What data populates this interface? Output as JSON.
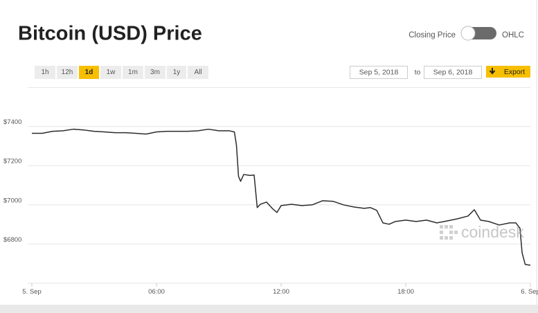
{
  "chart_data": {
    "type": "line",
    "title": "Bitcoin (USD) Price",
    "x": [
      0,
      0.5,
      1,
      1.5,
      2,
      2.5,
      3,
      3.5,
      4,
      4.5,
      5,
      5.5,
      6,
      6.5,
      7,
      7.5,
      8,
      8.5,
      9,
      9.5,
      9.75,
      9.85,
      9.95,
      10.05,
      10.2,
      10.5,
      10.7,
      10.85,
      11,
      11.3,
      11.6,
      11.8,
      12,
      12.5,
      13,
      13.5,
      14,
      14.5,
      15,
      15.5,
      16,
      16.3,
      16.6,
      16.9,
      17.2,
      17.5,
      18,
      18.5,
      19,
      19.5,
      20,
      20.5,
      21,
      21.3,
      21.6,
      22,
      22.5,
      23,
      23.3,
      23.5,
      23.6,
      23.75,
      24
    ],
    "values": [
      7365,
      7365,
      7375,
      7378,
      7386,
      7382,
      7375,
      7372,
      7368,
      7368,
      7365,
      7361,
      7372,
      7375,
      7375,
      7375,
      7378,
      7386,
      7378,
      7378,
      7372,
      7304,
      7145,
      7120,
      7155,
      7150,
      7152,
      6986,
      7003,
      7014,
      6979,
      6961,
      6996,
      7003,
      6996,
      7000,
      7021,
      7018,
      7000,
      6989,
      6982,
      6986,
      6972,
      6908,
      6901,
      6915,
      6922,
      6915,
      6922,
      6908,
      6918,
      6929,
      6943,
      6975,
      6922,
      6915,
      6897,
      6908,
      6908,
      6880,
      6756,
      6696,
      6692
    ],
    "color": "#2b2b2b",
    "xlim": [
      0,
      24
    ],
    "xticks": [
      {
        "value": 0,
        "label": "5. Sep"
      },
      {
        "value": 6,
        "label": "06:00"
      },
      {
        "value": 12,
        "label": "12:00"
      },
      {
        "value": 18,
        "label": "18:00"
      },
      {
        "value": 24,
        "label": "6. Sep"
      }
    ],
    "ylim": [
      6600,
      7600
    ],
    "yticks": [
      {
        "value": 6800,
        "label": "$6800"
      },
      {
        "value": 7000,
        "label": "$7000"
      },
      {
        "value": 7200,
        "label": "$7200"
      },
      {
        "value": 7400,
        "label": "$7400"
      }
    ],
    "grid": true
  },
  "controls": {
    "range_buttons": [
      "1h",
      "12h",
      "1d",
      "1w",
      "1m",
      "3m",
      "1y",
      "All"
    ],
    "active_range": "1d",
    "toggle_left": "Closing Price",
    "toggle_right": "OHLC",
    "date_from": "Sep 5, 2018",
    "date_separator": "to",
    "date_to": "Sep 6, 2018",
    "export": "Export",
    "watermark": "coindesk"
  }
}
